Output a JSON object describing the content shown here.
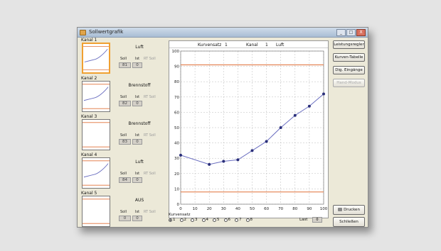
{
  "window": {
    "title": "Sollwertgrafik",
    "controls": [
      "_",
      "□",
      "X"
    ]
  },
  "kanale": [
    {
      "name": "Kanal 1",
      "medium": "Luft",
      "headers": [
        "Soll",
        "Ist",
        "RT Soll"
      ],
      "soll": "81",
      "ist": "0",
      "active": true
    },
    {
      "name": "Kanal 2",
      "medium": "Brennstoff",
      "headers": [
        "Soll",
        "Ist",
        "RT Soll"
      ],
      "soll": "82",
      "ist": "0",
      "active": false
    },
    {
      "name": "Kanal 3",
      "medium": "Brennstoff",
      "headers": [
        "Soll",
        "Ist",
        "RT Soll"
      ],
      "soll": "83",
      "ist": "0",
      "active": false
    },
    {
      "name": "Kanal 4",
      "medium": "Luft",
      "headers": [
        "Soll",
        "Ist",
        "RT Soll"
      ],
      "soll": "84",
      "ist": "0",
      "active": false
    },
    {
      "name": "Kanal 5",
      "medium": "AUS",
      "headers": [
        "Soll",
        "Ist",
        "RT Soll"
      ],
      "soll": "0",
      "ist": "0",
      "active": false
    }
  ],
  "chart_header": {
    "kurvensatz_label": "Kurvensatz",
    "kurvensatz_value": "1",
    "kanal_label": "Kanal",
    "kanal_value": "1",
    "medium": "Luft"
  },
  "chart_data": {
    "type": "line",
    "x": [
      0,
      20,
      30,
      40,
      50,
      60,
      70,
      80,
      90,
      100
    ],
    "y": [
      32,
      26,
      28,
      29,
      35,
      41,
      50,
      58,
      64,
      72
    ],
    "xlim": [
      0,
      100
    ],
    "ylim": [
      0,
      100
    ],
    "x_ticks": [
      0,
      10,
      20,
      30,
      40,
      50,
      60,
      70,
      80,
      90,
      100
    ],
    "y_ticks": [
      0,
      10,
      20,
      30,
      40,
      50,
      60,
      70,
      80,
      90,
      100
    ],
    "limit_lines": [
      91,
      8
    ],
    "grid": true,
    "line_color": "#6a6ec0",
    "point_color": "#2a2f7a",
    "limit_color": "#e07038"
  },
  "kurvensatz": {
    "label": "Kurvensatz",
    "options": [
      "1",
      "2",
      "3",
      "4",
      "5",
      "6",
      "7",
      "8"
    ],
    "selected": "1"
  },
  "last": {
    "label": "Last",
    "value": "0"
  },
  "buttons": {
    "leistungsregler": "Leistungsregler",
    "kurven_tabelle": "Kurven-Tabelle",
    "dig_eingaenge": "Dig. Eingänge",
    "handmodus": "Hand-Modus",
    "drucken": "Drucken",
    "schliessen": "Schließen"
  }
}
